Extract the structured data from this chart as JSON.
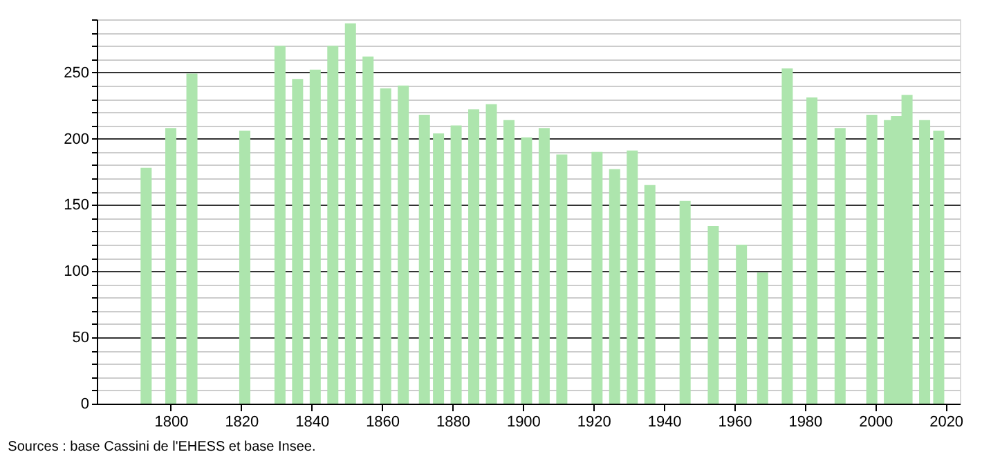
{
  "chart_data": {
    "type": "bar",
    "x": [
      1793,
      1800,
      1806,
      1821,
      1831,
      1836,
      1841,
      1846,
      1851,
      1856,
      1861,
      1866,
      1872,
      1876,
      1881,
      1886,
      1891,
      1896,
      1901,
      1906,
      1911,
      1921,
      1926,
      1931,
      1936,
      1946,
      1954,
      1962,
      1968,
      1975,
      1982,
      1990,
      1999,
      2004,
      2006,
      2009,
      2014,
      2018
    ],
    "values": [
      178,
      208,
      249,
      206,
      270,
      245,
      252,
      270,
      287,
      262,
      238,
      240,
      218,
      204,
      210,
      222,
      226,
      214,
      201,
      208,
      188,
      190,
      177,
      191,
      165,
      153,
      134,
      120,
      99,
      253,
      231,
      208,
      218,
      214,
      217,
      233,
      214,
      206
    ],
    "color": "#ade5ad",
    "xlim": [
      1779,
      2024
    ],
    "xticks": [
      1800,
      1820,
      1840,
      1860,
      1880,
      1900,
      1920,
      1940,
      1960,
      1980,
      2000,
      2020
    ],
    "ylim": [
      0,
      290
    ],
    "yticks": [
      0,
      {
        "value": 10,
        "label": null
      },
      {
        "value": 20,
        "label": null
      },
      {
        "value": 30,
        "label": null
      },
      {
        "value": 40,
        "label": null
      },
      50,
      {
        "value": 60,
        "label": null
      },
      {
        "value": 70,
        "label": null
      },
      {
        "value": 80,
        "label": null
      },
      {
        "value": 90,
        "label": null
      },
      100,
      {
        "value": 110,
        "label": null
      },
      {
        "value": 120,
        "label": null
      },
      {
        "value": 130,
        "label": null
      },
      {
        "value": 140,
        "label": null
      },
      150,
      {
        "value": 160,
        "label": null
      },
      {
        "value": 170,
        "label": null
      },
      {
        "value": 180,
        "label": null
      },
      {
        "value": 190,
        "label": null
      },
      200,
      {
        "value": 210,
        "label": null
      },
      {
        "value": 220,
        "label": null
      },
      {
        "value": 230,
        "label": null
      },
      {
        "value": 240,
        "label": null
      },
      250,
      {
        "value": 260,
        "label": null
      },
      {
        "value": 270,
        "label": null
      },
      {
        "value": 280,
        "label": null
      },
      {
        "value": 290,
        "label": null
      }
    ],
    "grid": "y",
    "annotations": [
      "Sources : base Cassini de l'EHESS et base Insee."
    ]
  }
}
